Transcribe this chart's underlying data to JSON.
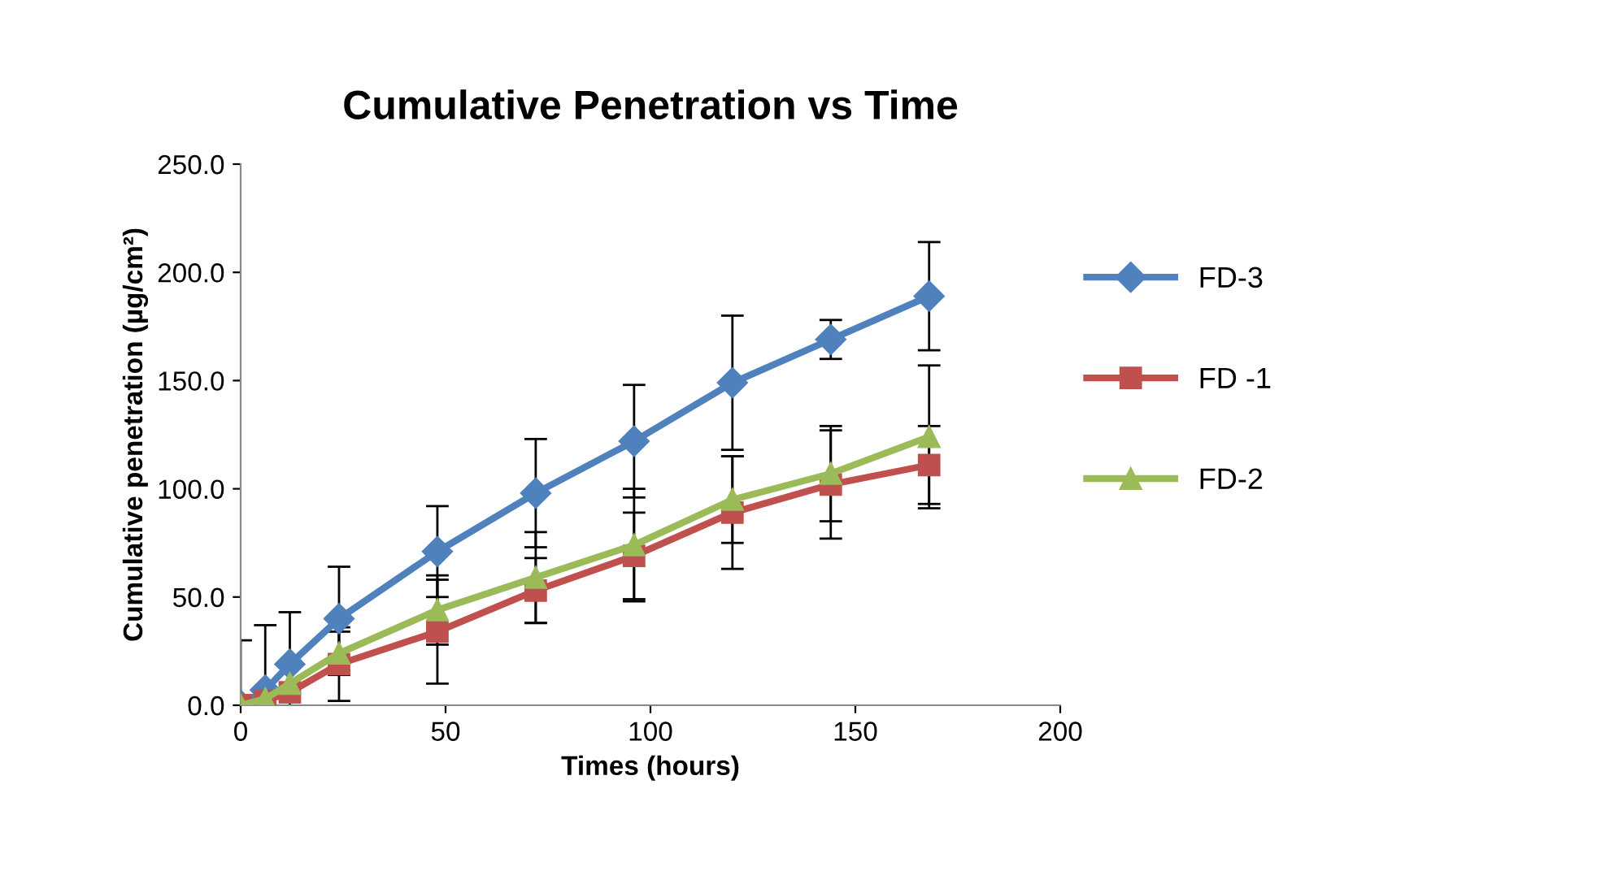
{
  "chart_data": {
    "type": "line",
    "title": "Cumulative Penetration vs Time",
    "xlabel": "Times (hours)",
    "ylabel": "Cumulative penetration (µg/cm²)",
    "x": [
      0,
      6,
      12,
      24,
      48,
      72,
      96,
      120,
      144,
      168
    ],
    "series": [
      {
        "name": "FD-3",
        "color": "#4f81bd",
        "marker": "diamond",
        "values": [
          0,
          7,
          19,
          40,
          71,
          98,
          122,
          149,
          169,
          189
        ],
        "errors": [
          30,
          30,
          24,
          24,
          21,
          25,
          26,
          31,
          9,
          25
        ]
      },
      {
        "name": "FD -1",
        "color": "#c0504d",
        "marker": "square",
        "values": [
          0,
          2,
          6,
          19,
          34,
          53,
          69,
          89,
          102,
          111
        ],
        "errors": [
          null,
          null,
          null,
          17,
          24,
          15,
          20,
          26,
          25,
          18
        ]
      },
      {
        "name": "FD-2",
        "color": "#9bbb59",
        "marker": "triangle",
        "values": [
          0,
          3,
          10,
          24,
          44,
          59,
          74,
          95,
          107,
          124
        ],
        "errors": [
          null,
          null,
          null,
          10,
          16,
          21,
          26,
          20,
          22,
          33
        ]
      }
    ],
    "xlim": [
      0,
      200
    ],
    "xticks": [
      0,
      50,
      100,
      150,
      200
    ],
    "ylim": [
      0,
      250
    ],
    "yticks": [
      {
        "value": 0,
        "label": "0.0"
      },
      {
        "value": 50,
        "label": "50.0"
      },
      {
        "value": 100,
        "label": "100.0"
      },
      {
        "value": 150,
        "label": "150.0"
      },
      {
        "value": 200,
        "label": "200.0"
      },
      {
        "value": 250,
        "label": "250.0"
      }
    ],
    "grid": false,
    "legend": "right",
    "line_style": "solid"
  }
}
